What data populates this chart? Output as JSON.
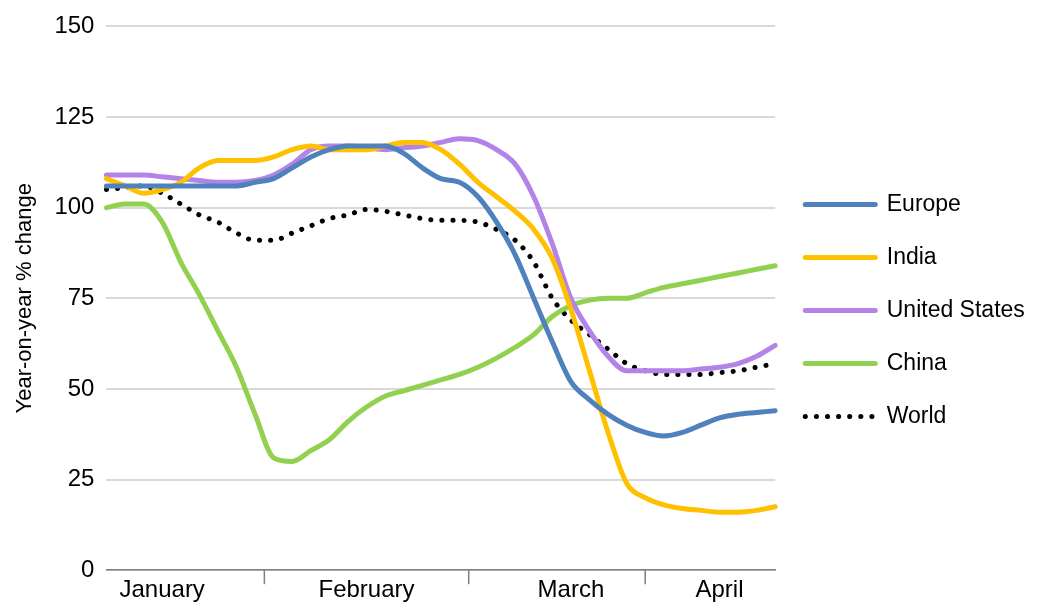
{
  "chart_data": {
    "type": "line",
    "ylabel": "Year-on-year % change",
    "categories": [
      null,
      null,
      null,
      "January",
      null,
      null,
      null,
      null,
      null,
      null,
      null,
      null,
      null,
      null,
      "February",
      null,
      null,
      null,
      null,
      null,
      null,
      null,
      null,
      null,
      null,
      "March",
      null,
      null,
      null,
      null,
      null,
      null,
      null,
      "April",
      null,
      null,
      null
    ],
    "series": [
      {
        "name": "Europe",
        "color": "#4f81bd",
        "values": [
          106,
          106,
          106,
          106,
          106,
          106,
          106,
          106,
          107,
          108,
          111,
          114,
          116,
          117,
          117,
          117,
          115,
          111,
          108,
          107,
          103,
          96,
          87,
          75,
          63,
          52,
          47,
          43,
          40,
          38,
          37,
          38,
          40,
          42,
          43,
          43.5,
          44
        ]
      },
      {
        "name": "India",
        "color": "#ffc000",
        "values": [
          108,
          106,
          104,
          105,
          107,
          111,
          113,
          113,
          113,
          114,
          116,
          117,
          116,
          116,
          116,
          117,
          118,
          118,
          116,
          112,
          107,
          103,
          99,
          94,
          86,
          72,
          55,
          38,
          24,
          20,
          18,
          17,
          16.5,
          16,
          16,
          16.5,
          17.5
        ]
      },
      {
        "name": "United States",
        "color": "#b383e8",
        "values": [
          109,
          109,
          109,
          108.5,
          108,
          107.5,
          107,
          107,
          107.5,
          109,
          112,
          116,
          117,
          117,
          116.5,
          116,
          116.5,
          117,
          118,
          119,
          118.5,
          116,
          112,
          103,
          90,
          75,
          66,
          59,
          55,
          55,
          55,
          55,
          55.5,
          56,
          57,
          59,
          62
        ]
      },
      {
        "name": "China",
        "color": "#92d050",
        "values": [
          100,
          101,
          101,
          96,
          85,
          76,
          66,
          56,
          43,
          31,
          30,
          33,
          36,
          41,
          45,
          48,
          49.5,
          51,
          52.5,
          54,
          56,
          58.5,
          61.5,
          65,
          70,
          73,
          74.5,
          75,
          75,
          76.5,
          78,
          79,
          80,
          81,
          82,
          83,
          84
        ]
      },
      {
        "name": "World",
        "color": "#000000",
        "line_style": "dotted",
        "values": [
          105,
          105.5,
          106,
          104,
          101,
          98,
          96,
          93,
          91,
          91,
          93,
          95,
          97,
          98,
          99.5,
          99,
          98,
          97,
          96.5,
          96.5,
          96,
          94,
          91,
          85,
          75,
          69,
          65,
          61,
          57,
          55,
          54,
          54,
          54,
          54.5,
          55,
          56,
          57
        ]
      }
    ],
    "ylim": [
      0,
      150
    ],
    "yticks": [
      0,
      25,
      50,
      75,
      100,
      125,
      150
    ],
    "grid": "y",
    "legend": "right",
    "marker": "none",
    "line_style": "solid"
  }
}
